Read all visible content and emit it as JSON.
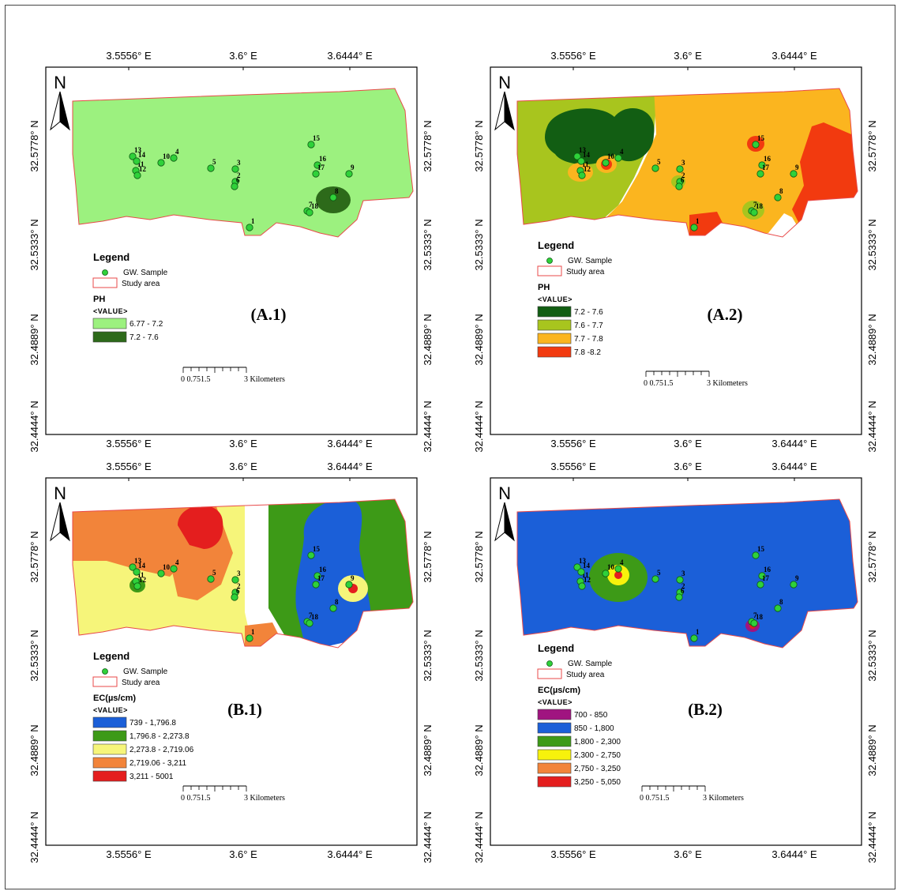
{
  "panels": [
    {
      "id": "A1",
      "label": "(A.1)",
      "legend_title": "Legend",
      "sample_label": "GW. Sample",
      "study_label": "Study area",
      "param_title": "PH",
      "value_header": "<VALUE>",
      "classes": [
        {
          "label": "6.77 - 7.2",
          "color": "#9cf17f"
        },
        {
          "label": "7.2 - 7.6",
          "color": "#2d6a1a"
        }
      ],
      "scale": {
        "ticks": "0  0.751.5",
        "end": "3  Kilometers"
      }
    },
    {
      "id": "A2",
      "label": "(A.2)",
      "legend_title": "Legend",
      "sample_label": "GW. Sample",
      "study_label": "Study area",
      "param_title": "PH",
      "value_header": "<VALUE>",
      "classes": [
        {
          "label": "7.2 - 7.6",
          "color": "#125e13"
        },
        {
          "label": "7.6 - 7.7",
          "color": "#a8c51e"
        },
        {
          "label": "7.7 - 7.8",
          "color": "#fbb51f"
        },
        {
          "label": "7.8 -8.2",
          "color": "#f23a0f"
        }
      ],
      "scale": {
        "ticks": "0  0.751.5",
        "end": "3  Kilometers"
      }
    },
    {
      "id": "B1",
      "label": "(B.1)",
      "legend_title": "Legend",
      "sample_label": "GW. Sample",
      "study_label": "Study area",
      "param_title": "EC(µs/cm)",
      "value_header": "<VALUE>",
      "classes": [
        {
          "label": "739 - 1,796.8",
          "color": "#1b5fd8"
        },
        {
          "label": "1,796.8 - 2,273.8",
          "color": "#3d9a17"
        },
        {
          "label": "2,273.8 - 2,719.06",
          "color": "#f6f57a"
        },
        {
          "label": "2,719.06 - 3,211",
          "color": "#f2843a"
        },
        {
          "label": "3,211 - 5001",
          "color": "#e41e1e"
        }
      ],
      "scale": {
        "ticks": "0  0.751.5",
        "end": "3  Kilometers"
      }
    },
    {
      "id": "B2",
      "label": "(B.2)",
      "legend_title": "Legend",
      "sample_label": "GW. Sample",
      "study_label": "Study area",
      "param_title": "EC(µs/cm)",
      "value_header": "<VALUE>",
      "classes": [
        {
          "label": "700 - 850",
          "color": "#a01480"
        },
        {
          "label": " 850 - 1,800",
          "color": "#1b5fd8"
        },
        {
          "label": "1,800 - 2,300",
          "color": "#3d9a17"
        },
        {
          "label": "2,300 - 2,750",
          "color": "#f7f20c"
        },
        {
          "label": "2,750 - 3,250",
          "color": "#f2843a"
        },
        {
          "label": "3,250 - 5,050",
          "color": "#e41e1e"
        }
      ],
      "scale": {
        "ticks": "0  0.751.5",
        "end": "3  Kilometers"
      }
    }
  ],
  "axes": {
    "lon_labels": [
      "3.5556° E",
      "3.6° E",
      "3.6444° E"
    ],
    "lat_labels": [
      "32.5778° N",
      "32.5333° N",
      "32.4889° N",
      "32.4444° N"
    ]
  },
  "north_label": "N",
  "samples": [
    "1",
    "2",
    "3",
    "4",
    "5",
    "6",
    "7",
    "8",
    "9",
    "10",
    "11",
    "12",
    "13",
    "14",
    "15",
    "16",
    "17",
    "18"
  ],
  "colors": {
    "study_outline": "#e84a4a",
    "sample_fill": "#2fd13a",
    "sample_stroke": "#0d5a12"
  }
}
